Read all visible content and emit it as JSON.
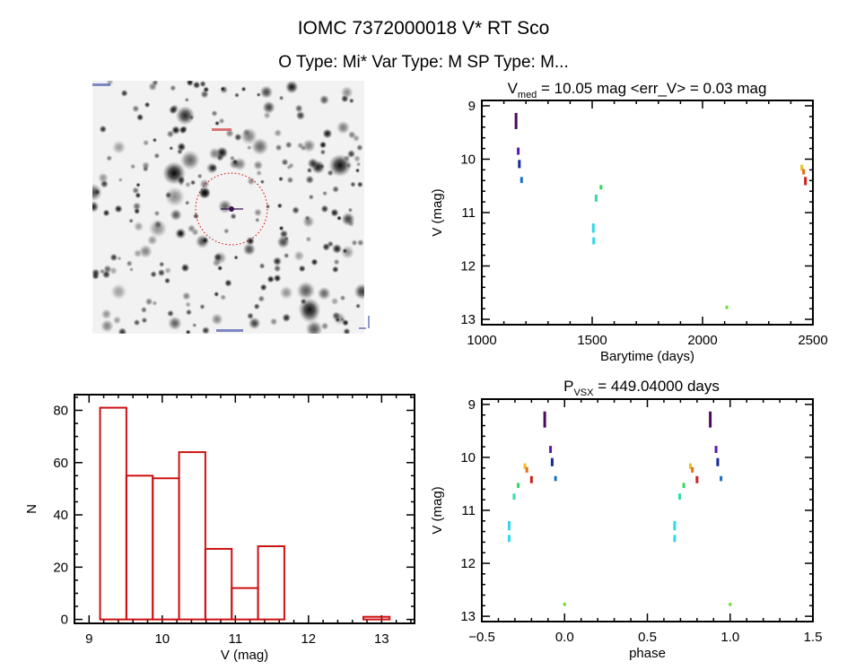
{
  "header": {
    "title": "IOMC 7372000018   V* RT Sco",
    "subtitle": "O Type: Mi*  Var Type: M  SP Type: M..."
  },
  "thumbnail": {
    "kind": "finding-chart",
    "marker_color": "#cc0000",
    "cross_color": "#3a1050"
  },
  "chart_data": [
    {
      "type": "scatter",
      "title_main": "V",
      "title_sub": "med",
      "title_rest": " = 10.05 mag <err_V> = 0.03 mag",
      "xlabel": "Barytime (days)",
      "ylabel": "V (mag)",
      "xlim": [
        1000,
        2500
      ],
      "ylim": [
        13.1,
        8.9
      ],
      "y_inverted": true,
      "xticks": [
        1000,
        1500,
        2000,
        2500
      ],
      "xtick_labels": [
        "1000",
        "1500",
        "2000",
        "2500"
      ],
      "yticks": [
        9,
        10,
        11,
        12,
        13
      ],
      "ytick_labels": [
        "9",
        "10",
        "11",
        "12",
        "13"
      ],
      "grid": false,
      "points": [
        {
          "x": 1155,
          "v_min": 9.15,
          "v_max": 9.42,
          "color": "#4a0a5e"
        },
        {
          "x": 1165,
          "v_min": 9.8,
          "v_max": 9.9,
          "color": "#5a1aa8"
        },
        {
          "x": 1170,
          "v_min": 10.03,
          "v_max": 10.15,
          "color": "#1a2a9a"
        },
        {
          "x": 1180,
          "v_min": 10.35,
          "v_max": 10.43,
          "color": "#1a70c0"
        },
        {
          "x": 1505,
          "v_min": 11.22,
          "v_max": 11.36,
          "color": "#30d8e8"
        },
        {
          "x": 1507,
          "v_min": 11.48,
          "v_max": 11.58,
          "color": "#30d8e8"
        },
        {
          "x": 1518,
          "v_min": 10.68,
          "v_max": 10.78,
          "color": "#30e0a0"
        },
        {
          "x": 1540,
          "v_min": 10.5,
          "v_max": 10.55,
          "color": "#30d860"
        },
        {
          "x": 2110,
          "v_min": 12.76,
          "v_max": 12.79,
          "color": "#70e030"
        },
        {
          "x": 2450,
          "v_min": 10.12,
          "v_max": 10.2,
          "color": "#e8c020"
        },
        {
          "x": 2458,
          "v_min": 10.2,
          "v_max": 10.27,
          "color": "#e07020"
        },
        {
          "x": 2466,
          "v_min": 10.35,
          "v_max": 10.47,
          "color": "#d02020"
        }
      ]
    },
    {
      "type": "bar",
      "subtype": "histogram",
      "xlabel": "V (mag)",
      "ylabel": "N",
      "xlim": [
        8.8,
        13.45
      ],
      "ylim": [
        -1.5,
        86
      ],
      "xticks": [
        9,
        10,
        11,
        12,
        13
      ],
      "xtick_labels": [
        "9",
        "10",
        "11",
        "12",
        "13"
      ],
      "yticks": [
        0,
        20,
        40,
        60,
        80
      ],
      "ytick_labels": [
        "0",
        "20",
        "40",
        "60",
        "80"
      ],
      "grid": false,
      "bar_color": "#cc1111",
      "bin_edges": [
        9.15,
        9.51,
        9.87,
        10.23,
        10.59,
        10.95,
        11.31,
        11.67,
        12.03,
        12.39,
        12.75,
        13.11
      ],
      "values": [
        81,
        55,
        54,
        64,
        27,
        12,
        28,
        0,
        0,
        0,
        1
      ]
    },
    {
      "type": "scatter",
      "title_main": "P",
      "title_sub": "VSX",
      "title_rest": " = 449.04000 days",
      "xlabel": "phase",
      "ylabel": "V (mag)",
      "xlim": [
        -0.5,
        1.5
      ],
      "ylim": [
        13.1,
        8.9
      ],
      "y_inverted": true,
      "xticks": [
        -0.5,
        0.0,
        0.5,
        1.0,
        1.5
      ],
      "xtick_labels": [
        "−0.5",
        "0.0",
        "0.5",
        "1.0",
        "1.5"
      ],
      "yticks": [
        9,
        10,
        11,
        12,
        13
      ],
      "ytick_labels": [
        "9",
        "10",
        "11",
        "12",
        "13"
      ],
      "grid": false,
      "points": [
        {
          "x": -0.12,
          "v_min": 9.15,
          "v_max": 9.42,
          "color": "#4a0a5e"
        },
        {
          "x": -0.085,
          "v_min": 9.8,
          "v_max": 9.9,
          "color": "#5a1aa8"
        },
        {
          "x": -0.075,
          "v_min": 10.03,
          "v_max": 10.15,
          "color": "#1a2a9a"
        },
        {
          "x": -0.055,
          "v_min": 10.37,
          "v_max": 10.43,
          "color": "#1a70c0"
        },
        {
          "x": -0.335,
          "v_min": 11.22,
          "v_max": 11.36,
          "color": "#30d8e8"
        },
        {
          "x": -0.335,
          "v_min": 11.48,
          "v_max": 11.58,
          "color": "#30d8e8"
        },
        {
          "x": -0.305,
          "v_min": 10.7,
          "v_max": 10.78,
          "color": "#30e0a0"
        },
        {
          "x": -0.28,
          "v_min": 10.5,
          "v_max": 10.56,
          "color": "#30d860"
        },
        {
          "x": 0.0,
          "v_min": 12.76,
          "v_max": 12.79,
          "color": "#70e030"
        },
        {
          "x": -0.24,
          "v_min": 10.13,
          "v_max": 10.2,
          "color": "#e8c020"
        },
        {
          "x": -0.228,
          "v_min": 10.2,
          "v_max": 10.27,
          "color": "#e07020"
        },
        {
          "x": -0.2,
          "v_min": 10.37,
          "v_max": 10.47,
          "color": "#d02020"
        },
        {
          "x": 0.88,
          "v_min": 9.15,
          "v_max": 9.42,
          "color": "#4a0a5e"
        },
        {
          "x": 0.915,
          "v_min": 9.8,
          "v_max": 9.9,
          "color": "#5a1aa8"
        },
        {
          "x": 0.925,
          "v_min": 10.03,
          "v_max": 10.15,
          "color": "#1a2a9a"
        },
        {
          "x": 0.945,
          "v_min": 10.37,
          "v_max": 10.43,
          "color": "#1a70c0"
        },
        {
          "x": 0.665,
          "v_min": 11.22,
          "v_max": 11.36,
          "color": "#30d8e8"
        },
        {
          "x": 0.665,
          "v_min": 11.48,
          "v_max": 11.58,
          "color": "#30d8e8"
        },
        {
          "x": 0.695,
          "v_min": 10.7,
          "v_max": 10.78,
          "color": "#30e0a0"
        },
        {
          "x": 0.72,
          "v_min": 10.5,
          "v_max": 10.56,
          "color": "#30d860"
        },
        {
          "x": 1.0,
          "v_min": 12.76,
          "v_max": 12.79,
          "color": "#70e030"
        },
        {
          "x": 0.76,
          "v_min": 10.13,
          "v_max": 10.2,
          "color": "#e8c020"
        },
        {
          "x": 0.772,
          "v_min": 10.2,
          "v_max": 10.27,
          "color": "#e07020"
        },
        {
          "x": 0.8,
          "v_min": 10.37,
          "v_max": 10.47,
          "color": "#d02020"
        }
      ]
    }
  ]
}
